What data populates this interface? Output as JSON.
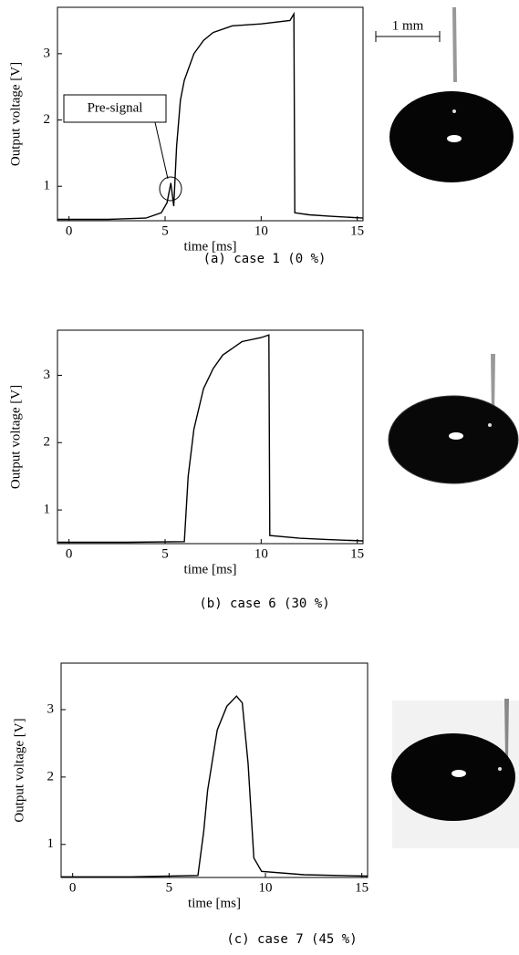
{
  "chart_data": [
    {
      "type": "line",
      "x_label": "time [ms]",
      "y_label": "Output voltage [V]",
      "caption": "(a)  case 1  (0 %)",
      "annotation": "Pre-signal",
      "scale_bar_label": "1 mm",
      "xlim": [
        -0.6,
        15.3
      ],
      "ylim": [
        0.48,
        3.7
      ],
      "xticks": [
        0,
        5,
        10,
        15
      ],
      "yticks": [
        1,
        2,
        3
      ],
      "color": "#000000",
      "x": [
        -0.6,
        2,
        4,
        4.8,
        5.1,
        5.3,
        5.45,
        5.6,
        5.8,
        6.0,
        6.5,
        7.0,
        7.5,
        8.5,
        10,
        11.5,
        11.7,
        11.75,
        12.5,
        13.5,
        15.3
      ],
      "values": [
        0.5,
        0.5,
        0.52,
        0.6,
        0.75,
        1.05,
        0.7,
        1.6,
        2.3,
        2.6,
        3.0,
        3.2,
        3.32,
        3.42,
        3.45,
        3.5,
        3.6,
        0.6,
        0.57,
        0.55,
        0.52
      ]
    },
    {
      "type": "line",
      "x_label": "time [ms]",
      "y_label": "Output voltage [V]",
      "caption": "(b)  case 6  (30 %)",
      "xlim": [
        -0.6,
        15.3
      ],
      "ylim": [
        0.5,
        3.67
      ],
      "xticks": [
        0,
        5,
        10,
        15
      ],
      "yticks": [
        1,
        2,
        3
      ],
      "color": "#000000",
      "x": [
        -0.6,
        3,
        6,
        6.2,
        6.5,
        7,
        7.5,
        8,
        9,
        10,
        10.4,
        10.45,
        12,
        13.5,
        15.3
      ],
      "values": [
        0.52,
        0.52,
        0.53,
        1.5,
        2.2,
        2.8,
        3.1,
        3.3,
        3.5,
        3.56,
        3.6,
        0.62,
        0.58,
        0.56,
        0.54
      ]
    },
    {
      "type": "line",
      "x_label": "time [ms]",
      "y_label": "Output voltage [V]",
      "caption": "(c)  case 7  (45 %)",
      "xlim": [
        -0.6,
        15.3
      ],
      "ylim": [
        0.51,
        3.69
      ],
      "xticks": [
        0,
        5,
        10,
        15
      ],
      "yticks": [
        1,
        2,
        3
      ],
      "color": "#000000",
      "x": [
        -0.6,
        3,
        6.5,
        6.8,
        7,
        7.5,
        8,
        8.5,
        8.8,
        9.1,
        9.4,
        9.8,
        12,
        15.3
      ],
      "values": [
        0.52,
        0.52,
        0.54,
        1.2,
        1.8,
        2.7,
        3.05,
        3.2,
        3.1,
        2.2,
        0.8,
        0.6,
        0.55,
        0.53
      ]
    }
  ]
}
